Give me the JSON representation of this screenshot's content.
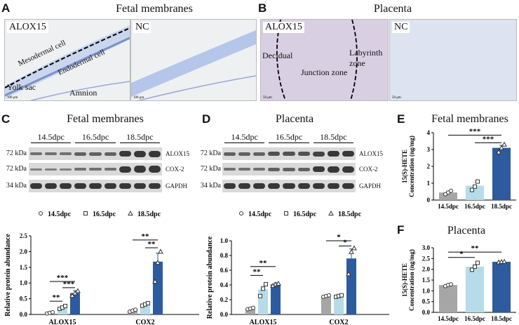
{
  "panels": {
    "A": {
      "letter": "A",
      "title": "Fetal membranes",
      "label_left": "ALOX15",
      "label_right": "NC",
      "annotations": {
        "mesodermal": "Mesodermal cell",
        "endodermal": "Endodermal cell",
        "yolk": "Yolk sac",
        "amnion": "Amnion"
      },
      "scalebar": "100 μm"
    },
    "B": {
      "letter": "B",
      "title": "Placenta",
      "label_left": "ALOX15",
      "label_right": "NC",
      "annotations": {
        "decidual": "Decidual",
        "junction": "Junction zone",
        "labyrinth": "Labyrinth\nzone"
      },
      "scalebar": "50 μm"
    },
    "C": {
      "letter": "C",
      "title": "Fetal membranes"
    },
    "D": {
      "letter": "D",
      "title": "Placenta"
    },
    "E": {
      "letter": "E",
      "title": "Fetal membranes"
    },
    "F": {
      "letter": "F",
      "title": "Placenta"
    }
  },
  "blots": {
    "groups": [
      "14.5dpc",
      "16.5dpc",
      "18.5dpc"
    ],
    "kda": [
      "72 kDa",
      "72 kDa",
      "34 kDa"
    ],
    "proteins": [
      "ALOX15",
      "COX-2",
      "GAPDH"
    ]
  },
  "colors": {
    "g14": "#a6a6a6",
    "g16": "#b6dcea",
    "g18": "#2c5c9f"
  },
  "chart_data": [
    {
      "id": "C",
      "type": "bar",
      "legend": [
        "14.5dpc",
        "16.5dpc",
        "18.5dpc"
      ],
      "categories": [
        "ALOX15",
        "COX2"
      ],
      "series": [
        {
          "name": "14.5dpc",
          "values": [
            0.05,
            0.12
          ],
          "err": [
            0.02,
            0.03
          ],
          "points": [
            [
              0.03,
              0.05,
              0.07
            ],
            [
              0.09,
              0.12,
              0.15
            ]
          ]
        },
        {
          "name": "16.5dpc",
          "values": [
            0.22,
            0.32
          ],
          "err": [
            0.04,
            0.04
          ],
          "points": [
            [
              0.18,
              0.22,
              0.27
            ],
            [
              0.28,
              0.32,
              0.36
            ]
          ]
        },
        {
          "name": "18.5dpc",
          "values": [
            0.68,
            1.68
          ],
          "err": [
            0.08,
            0.27
          ],
          "points": [
            [
              0.6,
              0.68,
              0.75
            ],
            [
              1.05,
              1.65,
              2.0
            ]
          ]
        }
      ],
      "ylabel": "Relative protein abundance",
      "ylim": [
        0,
        2.5
      ],
      "yticks": [
        0,
        0.5,
        1.0,
        1.5,
        2.0,
        2.5
      ],
      "sig": [
        {
          "cat": 0,
          "from": 0,
          "to": 1,
          "text": "**",
          "y": 0.42
        },
        {
          "cat": 0,
          "from": 0,
          "to": 2,
          "text": "***",
          "y": 1.05
        },
        {
          "cat": 0,
          "from": 1,
          "to": 2,
          "text": "***",
          "y": 0.85
        },
        {
          "cat": 1,
          "from": 0,
          "to": 2,
          "text": "**",
          "y": 2.37
        },
        {
          "cat": 1,
          "from": 1,
          "to": 2,
          "text": "**",
          "y": 2.12
        }
      ]
    },
    {
      "id": "D",
      "type": "bar",
      "legend": [
        "14.5dpc",
        "16.5dpc",
        "18.5dpc"
      ],
      "categories": [
        "ALOX15",
        "COX2"
      ],
      "series": [
        {
          "name": "14.5dpc",
          "values": [
            0.08,
            0.25
          ],
          "err": [
            0.015,
            0.01
          ],
          "points": [
            [
              0.07,
              0.08,
              0.09
            ],
            [
              0.24,
              0.25,
              0.26
            ]
          ]
        },
        {
          "name": "16.5dpc",
          "values": [
            0.34,
            0.25
          ],
          "err": [
            0.05,
            0.01
          ],
          "points": [
            [
              0.25,
              0.35,
              0.41
            ],
            [
              0.24,
              0.25,
              0.26
            ]
          ]
        },
        {
          "name": "18.5dpc",
          "values": [
            0.41,
            0.76
          ],
          "err": [
            0.02,
            0.13
          ],
          "points": [
            [
              0.39,
              0.41,
              0.42
            ],
            [
              0.55,
              0.85,
              0.9
            ]
          ]
        }
      ],
      "ylabel": "Relative protein abundance",
      "ylim": [
        0,
        1.0
      ],
      "yticks": [
        0,
        0.2,
        0.4,
        0.6,
        0.8,
        1.0
      ],
      "sig": [
        {
          "cat": 0,
          "from": 0,
          "to": 1,
          "text": "**",
          "y": 0.53
        },
        {
          "cat": 0,
          "from": 0,
          "to": 2,
          "text": "**",
          "y": 0.65
        },
        {
          "cat": 1,
          "from": 0,
          "to": 2,
          "text": "*",
          "y": 1.0
        },
        {
          "cat": 1,
          "from": 1,
          "to": 2,
          "text": "*",
          "y": 0.93
        }
      ]
    },
    {
      "id": "E",
      "type": "bar",
      "categories": [
        "14.5dpc",
        "16.5dpc",
        "18.5dpc"
      ],
      "values": [
        0.45,
        0.85,
        3.1
      ],
      "err": [
        0.08,
        0.2,
        0.15
      ],
      "points": [
        [
          0.35,
          0.45,
          0.55
        ],
        [
          0.6,
          0.8,
          1.1
        ],
        [
          2.85,
          3.1,
          3.3
        ]
      ],
      "ylabel": "15(S)-HETE Concentration (ng/mg)",
      "ylim": [
        0,
        4
      ],
      "yticks": [
        0,
        1,
        2,
        3,
        4
      ],
      "sig": [
        {
          "from": 0,
          "to": 2,
          "text": "***",
          "y": 3.85
        },
        {
          "from": 1,
          "to": 2,
          "text": "***",
          "y": 3.4
        }
      ]
    },
    {
      "id": "F",
      "type": "bar",
      "categories": [
        "14.5dpc",
        "16.5dpc",
        "18.5dpc"
      ],
      "values": [
        1.27,
        2.12,
        2.35
      ],
      "err": [
        0.05,
        0.1,
        0.02
      ],
      "points": [
        [
          1.22,
          1.27,
          1.3
        ],
        [
          1.98,
          2.12,
          2.3
        ],
        [
          2.33,
          2.35,
          2.36
        ]
      ],
      "ylabel": "15(S)-HETE Concentration (ng/mg)",
      "ylim": [
        0,
        3.0
      ],
      "yticks": [
        0.0,
        0.5,
        1.0,
        1.5,
        2.0,
        2.5,
        3.0
      ],
      "sig": [
        {
          "from": 0,
          "to": 1,
          "text": "*",
          "y": 2.55
        },
        {
          "from": 0,
          "to": 2,
          "text": "**",
          "y": 2.8
        }
      ]
    }
  ]
}
